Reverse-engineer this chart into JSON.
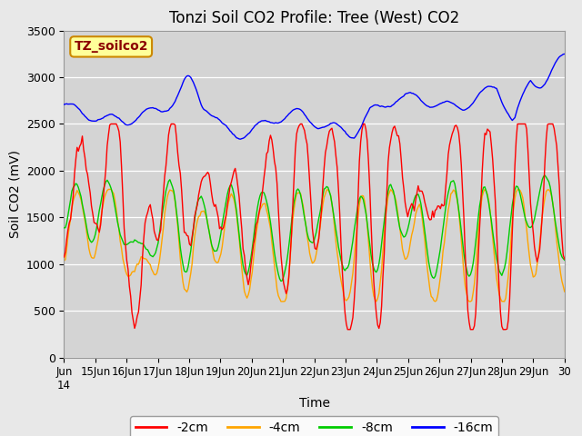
{
  "title": "Tonzi Soil CO2 Profile: Tree (West) CO2",
  "xlabel": "Time",
  "ylabel": "Soil CO2 (mV)",
  "legend_label": "TZ_soilco2",
  "series_labels": [
    "-2cm",
    "-4cm",
    "-8cm",
    "-16cm"
  ],
  "series_colors": [
    "#ff0000",
    "#ffa500",
    "#00cc00",
    "#0000ff"
  ],
  "ylim": [
    0,
    3500
  ],
  "background_color": "#e8e8e8",
  "plot_bg_color": "#d4d4d4",
  "title_fontsize": 12,
  "axis_fontsize": 10,
  "tick_fontsize": 9,
  "legend_fontsize": 10,
  "linewidth": 1.0
}
